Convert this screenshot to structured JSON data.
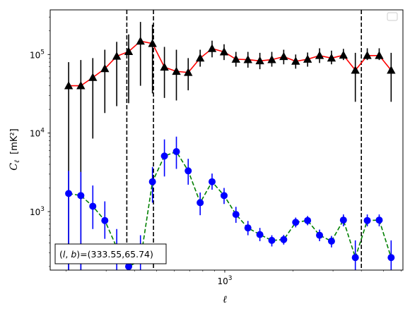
{
  "chart_data": {
    "type": "line",
    "xscale": "log",
    "yscale": "log",
    "xlim": [
      170,
      6100
    ],
    "ylim": [
      180,
      370000
    ],
    "xlabel": "ℓ",
    "ylabel_main": "C",
    "ylabel_sub": "ℓ",
    "ylabel_unit": "[mK²]",
    "x_ticks": [
      {
        "value": 1000,
        "base": "10",
        "exp": "3"
      }
    ],
    "y_ticks": [
      {
        "value": 1000,
        "base": "10",
        "exp": "3"
      },
      {
        "value": 10000,
        "base": "10",
        "exp": "4"
      },
      {
        "value": 100000,
        "base": "10",
        "exp": "5"
      }
    ],
    "annotation": "(l, b)=(333.55,65.74)",
    "annotation_parts": {
      "open": "(",
      "l": "l",
      "comma": ", ",
      "b": "b",
      "close": ")",
      "values": "=(333.55,65.74)"
    },
    "legend": {
      "position": "upper-right",
      "entries": []
    },
    "vlines": [
      370,
      485,
      4000
    ],
    "series": [
      {
        "line_color": "#ff0000",
        "line_style": "solid",
        "marker": "triangle",
        "marker_color": "#000000",
        "errorbar_color": "#000000",
        "x": [
          205,
          232,
          262,
          296,
          334,
          377,
          425,
          480,
          542,
          612,
          690,
          779,
          879,
          993,
          1120,
          1265,
          1428,
          1612,
          1819,
          2054,
          2318,
          2617,
          2954,
          3334,
          3763,
          4248,
          4795,
          5412
        ],
        "y": [
          40000,
          40000,
          51000,
          66000,
          95000,
          109000,
          148000,
          138000,
          69000,
          61000,
          59000,
          90000,
          119000,
          108000,
          87000,
          86000,
          83000,
          86000,
          94000,
          82000,
          87000,
          97000,
          90000,
          98000,
          63000,
          97000,
          97000,
          63000
        ],
        "y_err_low": [
          180,
          180,
          8500,
          18000,
          22000,
          24000,
          40000,
          32000,
          28000,
          26000,
          35000,
          70000,
          92000,
          85000,
          70000,
          68000,
          65000,
          70000,
          75000,
          66000,
          70000,
          78000,
          75000,
          85000,
          25000,
          85000,
          85000,
          25000
        ],
        "y_err_high": [
          80000,
          85000,
          90000,
          115000,
          145000,
          180000,
          260000,
          240000,
          125000,
          115000,
          90000,
          115000,
          150000,
          135000,
          108000,
          108000,
          105000,
          108000,
          115000,
          100000,
          106000,
          120000,
          112000,
          118000,
          105000,
          120000,
          120000,
          105000
        ]
      },
      {
        "line_color": "#008000",
        "line_style": "dashed",
        "marker": "circle",
        "marker_color": "#0000ff",
        "errorbar_color": "#0000ff",
        "x": [
          205,
          232,
          262,
          296,
          334,
          377,
          425,
          480,
          542,
          612,
          690,
          779,
          879,
          993,
          1120,
          1265,
          1428,
          1612,
          1819,
          2054,
          2318,
          2617,
          2954,
          3334,
          3763,
          4248,
          4795,
          5412
        ],
        "y": [
          1700,
          1600,
          1170,
          770,
          350,
          200,
          240,
          2400,
          5100,
          5800,
          3300,
          1300,
          2400,
          1600,
          920,
          620,
          510,
          430,
          440,
          730,
          770,
          500,
          420,
          780,
          260,
          770,
          780,
          260
        ],
        "y_err_low": [
          180,
          180,
          600,
          450,
          180,
          180,
          180,
          1300,
          2800,
          3500,
          2200,
          900,
          1900,
          1250,
          720,
          500,
          420,
          360,
          380,
          630,
          670,
          420,
          350,
          650,
          180,
          650,
          650,
          180
        ],
        "y_err_high": [
          3300,
          3200,
          2150,
          1350,
          600,
          350,
          500,
          3700,
          8300,
          9000,
          4700,
          1750,
          3050,
          2000,
          1150,
          760,
          620,
          500,
          505,
          840,
          880,
          590,
          490,
          920,
          430,
          920,
          920,
          430
        ]
      }
    ]
  }
}
